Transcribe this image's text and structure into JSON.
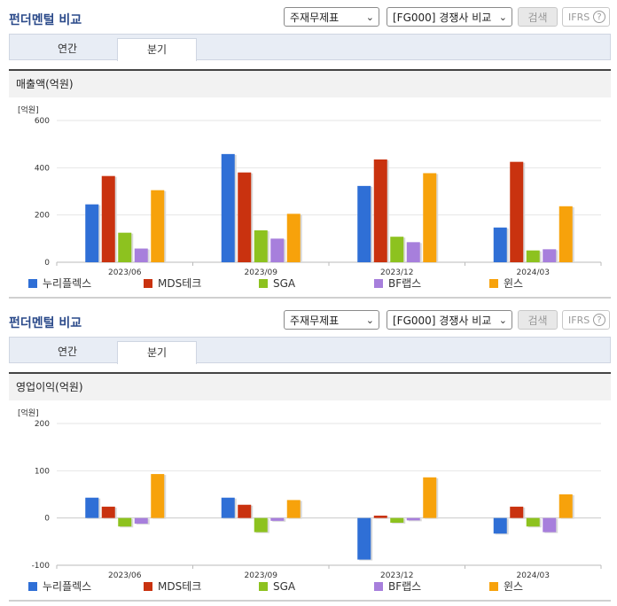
{
  "sections": [
    {
      "title": "펀더멘털 비교",
      "selects": {
        "type": "주재무제표",
        "group": "[FG000] 경쟁사 비교"
      },
      "search_label": "검색",
      "ifrs_label": "IFRS",
      "help_label": "?",
      "tabs": [
        "연간",
        "분기"
      ],
      "active_tab": "분기",
      "metric_title": "매출액(억원)",
      "unit_label": "[억원]"
    },
    {
      "title": "펀더멘털 비교",
      "selects": {
        "type": "주재무제표",
        "group": "[FG000] 경쟁사 비교"
      },
      "search_label": "검색",
      "ifrs_label": "IFRS",
      "help_label": "?",
      "tabs": [
        "연간",
        "분기"
      ],
      "active_tab": "분기",
      "metric_title": "영업이익(억원)",
      "unit_label": "[억원]"
    }
  ],
  "chart_data": [
    {
      "type": "bar",
      "title": "매출액(억원)",
      "ylabel": "[억원]",
      "categories": [
        "2023/06",
        "2023/09",
        "2023/12",
        "2024/03"
      ],
      "ylim": [
        0,
        600
      ],
      "yticks": [
        0,
        200,
        400,
        600
      ],
      "series": [
        {
          "name": "누리플렉스",
          "color": "#2f6fd6",
          "values": [
            245,
            458,
            323,
            147
          ]
        },
        {
          "name": "MDS테크",
          "color": "#c9320f",
          "values": [
            365,
            380,
            435,
            425
          ]
        },
        {
          "name": "SGA",
          "color": "#8dc21f",
          "values": [
            125,
            135,
            108,
            50
          ]
        },
        {
          "name": "BF랩스",
          "color": "#a77fdc",
          "values": [
            58,
            100,
            85,
            55
          ]
        },
        {
          "name": "윈스",
          "color": "#f7a20b",
          "values": [
            305,
            205,
            377,
            237
          ]
        }
      ]
    },
    {
      "type": "bar",
      "title": "영업이익(억원)",
      "ylabel": "[억원]",
      "categories": [
        "2023/06",
        "2023/09",
        "2023/12",
        "2024/03"
      ],
      "ylim": [
        -100,
        200
      ],
      "yticks": [
        -100,
        0,
        100,
        200
      ],
      "series": [
        {
          "name": "누리플렉스",
          "color": "#2f6fd6",
          "values": [
            43,
            43,
            -88,
            -33
          ]
        },
        {
          "name": "MDS테크",
          "color": "#c9320f",
          "values": [
            24,
            28,
            5,
            24
          ]
        },
        {
          "name": "SGA",
          "color": "#8dc21f",
          "values": [
            -18,
            -30,
            -10,
            -18
          ]
        },
        {
          "name": "BF랩스",
          "color": "#a77fdc",
          "values": [
            -12,
            -6,
            -5,
            -30
          ]
        },
        {
          "name": "윈스",
          "color": "#f7a20b",
          "values": [
            93,
            38,
            86,
            50
          ]
        }
      ]
    }
  ]
}
